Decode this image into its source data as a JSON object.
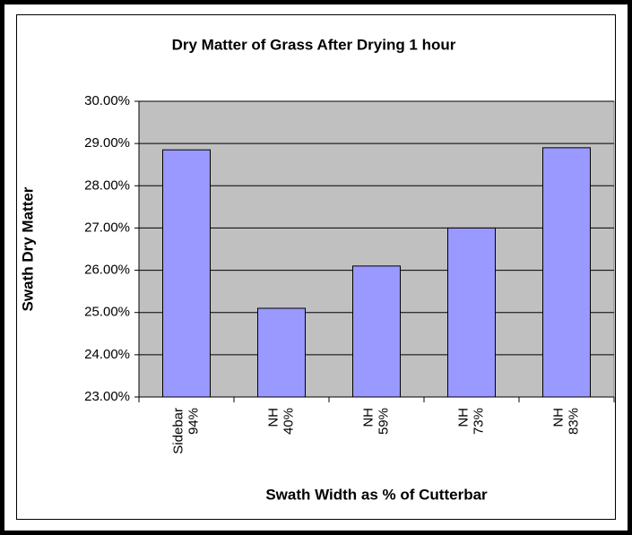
{
  "chart_data": {
    "type": "bar",
    "title": "Dry Matter of Grass After Drying 1 hour",
    "x_label": "Swath Width as % of Cutterbar",
    "y_label": "Swath Dry Matter",
    "categories": [
      "Sidebar 94%",
      "NH 40%",
      "NH 59%",
      "NH 73%",
      "NH 83%"
    ],
    "values": [
      28.85,
      25.1,
      26.1,
      27.0,
      28.9
    ],
    "color": "#9999ff",
    "ylim": [
      23,
      30
    ],
    "yticks": [
      {
        "value": 23,
        "label": "23.00%"
      },
      {
        "value": 24,
        "label": "24.00%"
      },
      {
        "value": 25,
        "label": "25.00%"
      },
      {
        "value": 26,
        "label": "26.00%"
      },
      {
        "value": 27,
        "label": "27.00%"
      },
      {
        "value": 28,
        "label": "28.00%"
      },
      {
        "value": 29,
        "label": "29.00%"
      },
      {
        "value": 30,
        "label": "30.00%"
      }
    ],
    "grid": true
  }
}
